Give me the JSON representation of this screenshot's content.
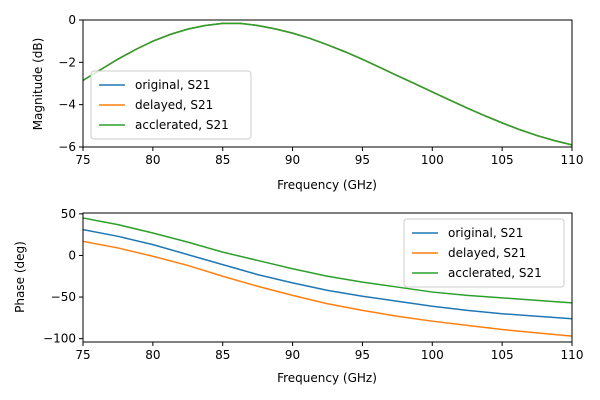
{
  "chart_data": [
    {
      "type": "line",
      "title": "",
      "xlabel": "Frequency (GHz)",
      "ylabel": "Magnitude (dB)",
      "xlim": [
        75,
        110
      ],
      "ylim": [
        -6,
        0
      ],
      "xticks": [
        75,
        80,
        85,
        90,
        95,
        100,
        105,
        110
      ],
      "xtick_labels": [
        "75",
        "80",
        "85",
        "90",
        "95",
        "100",
        "105",
        "110"
      ],
      "yticks": [
        -6,
        -4,
        -2,
        0
      ],
      "ytick_labels": [
        "−6",
        "−4",
        "−2",
        "0"
      ],
      "grid": false,
      "legend_position": "bottom-left",
      "x": [
        75,
        76.25,
        77.5,
        78.75,
        80,
        81.25,
        82.5,
        83.75,
        85,
        86.25,
        87.5,
        88.75,
        90,
        91.25,
        92.5,
        93.75,
        95,
        96.25,
        97.5,
        98.75,
        100,
        101.25,
        102.5,
        103.75,
        105,
        106.25,
        107.5,
        108.75,
        110
      ],
      "series": [
        {
          "name": "original, S21",
          "color": "#1f77b4",
          "values": [
            -2.85,
            -2.35,
            -1.85,
            -1.4,
            -1.0,
            -0.68,
            -0.43,
            -0.26,
            -0.16,
            -0.16,
            -0.26,
            -0.42,
            -0.62,
            -0.87,
            -1.17,
            -1.5,
            -1.86,
            -2.24,
            -2.63,
            -3.01,
            -3.4,
            -3.78,
            -4.16,
            -4.52,
            -4.86,
            -5.18,
            -5.46,
            -5.7,
            -5.9
          ]
        },
        {
          "name": "delayed, S21",
          "color": "#ff7f0e",
          "values": [
            -2.85,
            -2.35,
            -1.85,
            -1.4,
            -1.0,
            -0.68,
            -0.43,
            -0.26,
            -0.16,
            -0.16,
            -0.26,
            -0.42,
            -0.62,
            -0.87,
            -1.17,
            -1.5,
            -1.86,
            -2.24,
            -2.63,
            -3.01,
            -3.4,
            -3.78,
            -4.16,
            -4.52,
            -4.86,
            -5.18,
            -5.46,
            -5.7,
            -5.9
          ]
        },
        {
          "name": "acclerated, S21",
          "color": "#2ca02c",
          "values": [
            -2.85,
            -2.35,
            -1.85,
            -1.4,
            -1.0,
            -0.68,
            -0.43,
            -0.26,
            -0.16,
            -0.16,
            -0.26,
            -0.42,
            -0.62,
            -0.87,
            -1.17,
            -1.5,
            -1.86,
            -2.24,
            -2.63,
            -3.01,
            -3.4,
            -3.78,
            -4.16,
            -4.52,
            -4.86,
            -5.18,
            -5.46,
            -5.7,
            -5.9
          ]
        }
      ]
    },
    {
      "type": "line",
      "title": "",
      "xlabel": "Frequency (GHz)",
      "ylabel": "Phase (deg)",
      "xlim": [
        75,
        110
      ],
      "ylim": [
        -104,
        51
      ],
      "xticks": [
        75,
        80,
        85,
        90,
        95,
        100,
        105,
        110
      ],
      "xtick_labels": [
        "75",
        "80",
        "85",
        "90",
        "95",
        "100",
        "105",
        "110"
      ],
      "yticks": [
        -100,
        -50,
        0,
        50
      ],
      "ytick_labels": [
        "−100",
        "−50",
        "0",
        "50"
      ],
      "grid": false,
      "legend_position": "top-right",
      "x": [
        75,
        77.5,
        80,
        82.5,
        85,
        87.5,
        90,
        92.5,
        95,
        97.5,
        100,
        102.5,
        105,
        107.5,
        110
      ],
      "series": [
        {
          "name": "original, S21",
          "color": "#1f77b4",
          "values": [
            31,
            23,
            13,
            1,
            -11,
            -23,
            -33,
            -42,
            -49,
            -55,
            -61,
            -66,
            -70,
            -73,
            -76
          ]
        },
        {
          "name": "delayed, S21",
          "color": "#ff7f0e",
          "values": [
            17,
            9,
            -1,
            -12,
            -25,
            -37,
            -48,
            -58,
            -66,
            -73,
            -79,
            -84,
            -89,
            -93,
            -97
          ]
        },
        {
          "name": "acclerated, S21",
          "color": "#2ca02c",
          "values": [
            45,
            37,
            27,
            16,
            4,
            -6,
            -16,
            -25,
            -32,
            -38,
            -44,
            -48,
            -51,
            -54,
            -57
          ]
        }
      ]
    }
  ]
}
